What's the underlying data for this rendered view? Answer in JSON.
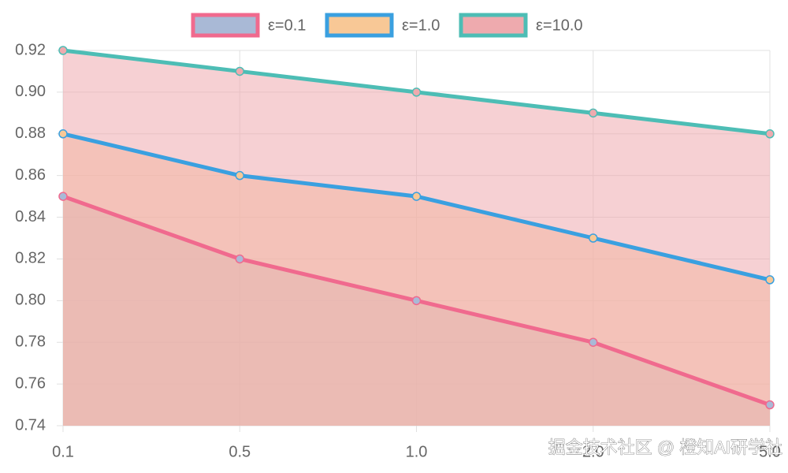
{
  "chart_data": {
    "type": "area",
    "categories": [
      "0.1",
      "0.5",
      "1.0",
      "2.0",
      "5.0"
    ],
    "series": [
      {
        "name": "ε=0.1",
        "color": "#f06a8e",
        "fill": "#a9b9d6",
        "values": [
          0.85,
          0.82,
          0.8,
          0.78,
          0.75
        ]
      },
      {
        "name": "ε=1.0",
        "color": "#3aa0e0",
        "fill": "#f8c896",
        "values": [
          0.88,
          0.86,
          0.85,
          0.83,
          0.81
        ]
      },
      {
        "name": "ε=10.0",
        "color": "#4dbdb5",
        "fill": "#eeaaae",
        "values": [
          0.92,
          0.91,
          0.9,
          0.89,
          0.88
        ]
      }
    ],
    "ylim": [
      0.74,
      0.92
    ],
    "yticks": [
      0.74,
      0.76,
      0.78,
      {
        "value": 0.8,
        "label": "0.80"
      },
      0.82,
      0.84,
      0.86,
      0.88,
      {
        "value": 0.9,
        "label": "0.90"
      },
      0.92
    ],
    "grid": true,
    "legend": "top",
    "watermark": "掘金技术社区 @ 橙知AI研学社"
  }
}
